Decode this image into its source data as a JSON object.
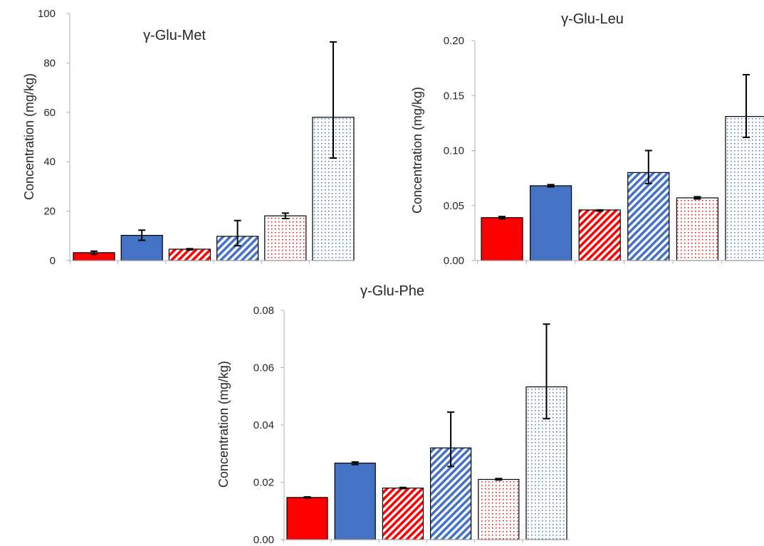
{
  "colors": {
    "red": "#ff0000",
    "blue": "#4472c4",
    "border": "#000000",
    "text": "#262626"
  },
  "chart_data": [
    {
      "type": "bar",
      "title": "γ-Glu-Met",
      "ylabel": "Concentration (mg/kg)",
      "ylim": [
        0,
        100
      ],
      "yticks": [
        0,
        20,
        40,
        60,
        80,
        100
      ],
      "ytick_labels": [
        "0",
        "20",
        "40",
        "60",
        "80",
        "100"
      ],
      "values": [
        3.2,
        10.2,
        4.6,
        9.8,
        18.1,
        58.0
      ],
      "error_low": [
        2.5,
        8.2,
        4.3,
        6.0,
        17.0,
        41.5
      ],
      "error_high": [
        3.8,
        12.3,
        4.8,
        16.2,
        19.2,
        88.5
      ],
      "fills": [
        "solid-red",
        "solid-blue",
        "hatch-red",
        "hatch-blue",
        "dots-red",
        "dots-blue"
      ],
      "grid": false,
      "legend": "none"
    },
    {
      "type": "bar",
      "title": "γ-Glu-Leu",
      "ylabel": "Concentration (mg/kg)",
      "ylim": [
        0,
        0.2
      ],
      "yticks": [
        0,
        0.05,
        0.1,
        0.15,
        0.2
      ],
      "ytick_labels": [
        "0.00",
        "0.05",
        "0.10",
        "0.15",
        "0.20"
      ],
      "values": [
        0.039,
        0.068,
        0.046,
        0.08,
        0.057,
        0.131
      ],
      "error_low": [
        0.038,
        0.067,
        0.045,
        0.07,
        0.056,
        0.112
      ],
      "error_high": [
        0.04,
        0.069,
        0.046,
        0.1,
        0.058,
        0.169
      ],
      "fills": [
        "solid-red",
        "solid-blue",
        "hatch-red",
        "hatch-blue",
        "dots-red",
        "dots-blue"
      ],
      "grid": false,
      "legend": "none"
    },
    {
      "type": "bar",
      "title": "γ-Glu-Phe",
      "ylabel": "Concentration (mg/kg)",
      "ylim": [
        0,
        0.08
      ],
      "yticks": [
        0,
        0.02,
        0.04,
        0.06,
        0.08
      ],
      "ytick_labels": [
        "0.00",
        "0.02",
        "0.04",
        "0.06",
        "0.08"
      ],
      "values": [
        0.0147,
        0.0267,
        0.018,
        0.032,
        0.021,
        0.0533
      ],
      "error_low": [
        0.0145,
        0.0262,
        0.0178,
        0.0255,
        0.0208,
        0.0422
      ],
      "error_high": [
        0.0149,
        0.0271,
        0.0182,
        0.0445,
        0.0213,
        0.0752
      ],
      "fills": [
        "solid-red",
        "solid-blue",
        "hatch-red",
        "hatch-blue",
        "dots-red",
        "dots-blue"
      ],
      "grid": false,
      "legend": "none"
    }
  ]
}
